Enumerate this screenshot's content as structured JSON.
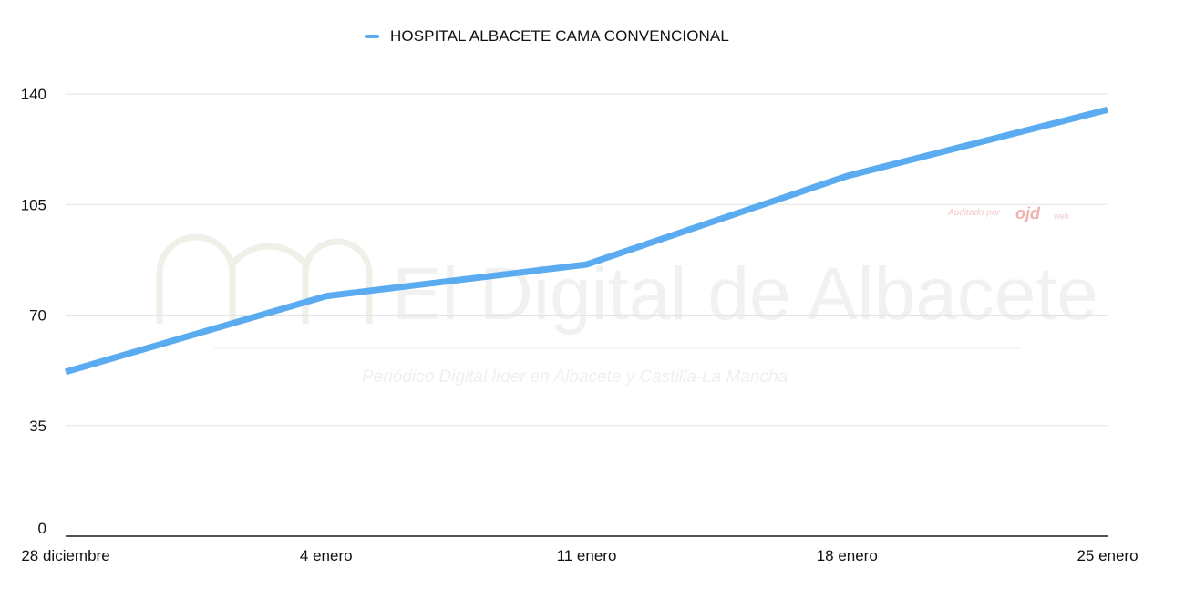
{
  "chart_data": {
    "type": "line",
    "categories": [
      "28 diciembre",
      "4 enero",
      "11 enero",
      "18 enero",
      "25 enero"
    ],
    "series": [
      {
        "name": "HOSPITAL ALBACETE CAMA CONVENCIONAL",
        "values": [
          52,
          76,
          86,
          114,
          135
        ],
        "color": "#5aabf0"
      }
    ],
    "yticks": [
      0,
      35,
      70,
      105,
      140
    ],
    "ylim": [
      0,
      140
    ],
    "grid": true,
    "legend_position": "top-center"
  },
  "watermark": {
    "title": "El Digital de Albacete",
    "tagline": "Periódico Digital líder en Albacete y Castilla-La Mancha",
    "audit_text": "Auditado por",
    "audit_logo": "ojd",
    "audit_suffix": "web"
  }
}
